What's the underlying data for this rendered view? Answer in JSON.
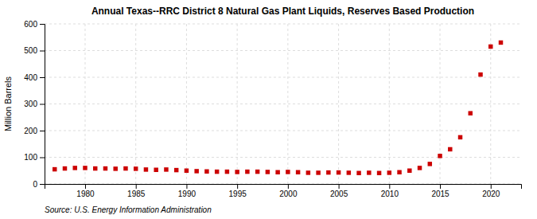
{
  "chart_data": {
    "type": "scatter",
    "title": "Annual Texas--RRC District 8 Natural Gas Plant Liquids, Reserves Based Production",
    "ylabel": "Million Barrels",
    "source": "Source: U.S. Energy Information Administration",
    "color": "#cc0000",
    "marker": "square",
    "grid": true,
    "x": [
      1977,
      1978,
      1979,
      1980,
      1981,
      1982,
      1983,
      1984,
      1985,
      1986,
      1987,
      1988,
      1989,
      1990,
      1991,
      1992,
      1993,
      1994,
      1995,
      1996,
      1997,
      1998,
      1999,
      2000,
      2001,
      2002,
      2003,
      2004,
      2005,
      2006,
      2007,
      2008,
      2009,
      2010,
      2011,
      2012,
      2013,
      2014,
      2015,
      2016,
      2017,
      2018,
      2019,
      2020,
      2021
    ],
    "values": [
      55,
      58,
      60,
      60,
      58,
      58,
      57,
      58,
      57,
      54,
      53,
      54,
      52,
      50,
      48,
      47,
      46,
      46,
      45,
      46,
      46,
      45,
      44,
      45,
      44,
      42,
      42,
      43,
      43,
      42,
      41,
      42,
      41,
      42,
      44,
      50,
      60,
      75,
      105,
      130,
      175,
      265,
      410,
      515,
      530
    ],
    "xlim": [
      1976,
      2023
    ],
    "xticks": [
      1980,
      1985,
      1990,
      1995,
      2000,
      2005,
      2010,
      2015,
      2020
    ],
    "ylim": [
      0,
      600
    ],
    "yticks": [
      0,
      100,
      200,
      300,
      400,
      500,
      600
    ]
  }
}
